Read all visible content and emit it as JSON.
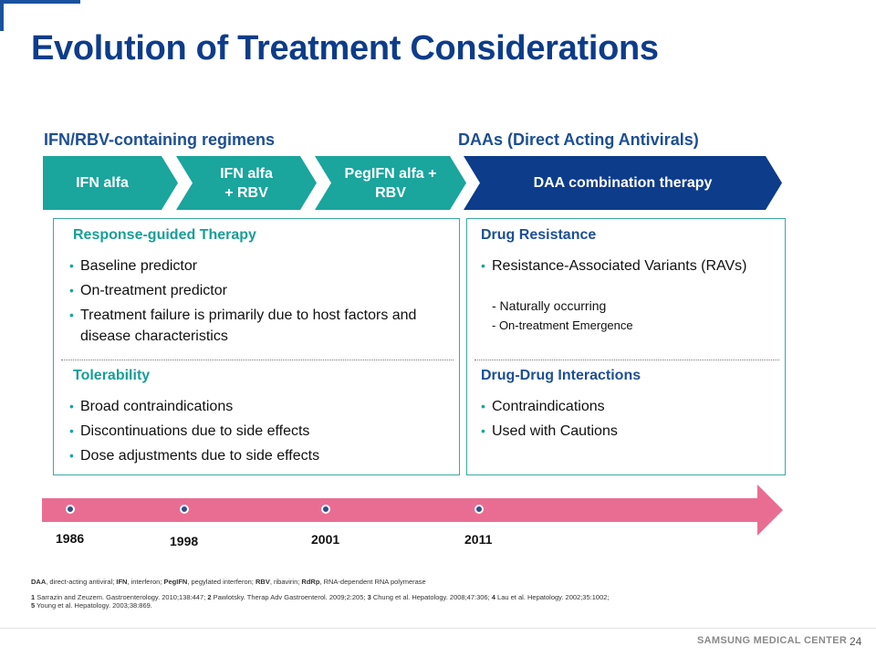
{
  "slide": {
    "title": "Evolution of Treatment Considerations",
    "page_number": "24",
    "footer_brand": "SAMSUNG MEDICAL CENTER"
  },
  "sections": {
    "left_heading": "IFN/RBV-containing  regimens",
    "right_heading": "DAAs (Direct Acting Antivirals)"
  },
  "chevrons": [
    {
      "label": "IFN alfa",
      "color": "#1aa59d"
    },
    {
      "label": "IFN alfa\n+ RBV",
      "color": "#1aa59d"
    },
    {
      "label": "PegIFN alfa +\nRBV",
      "color": "#1aa59d"
    },
    {
      "label": "DAA combination therapy",
      "color": "#0d3c8a"
    }
  ],
  "left_box": {
    "top_heading": "Response-guided Therapy",
    "top_items": [
      "Baseline predictor",
      "On-treatment predictor",
      "Treatment failure is primarily due to host  factors and disease characteristics"
    ],
    "bottom_heading": "Tolerability",
    "bottom_items": [
      "Broad contraindications",
      "Discontinuations due to side effects",
      "Dose adjustments due to side effects"
    ]
  },
  "right_box": {
    "top_heading": "Drug Resistance",
    "top_items": [
      "Resistance-Associated Variants (RAVs)"
    ],
    "top_subitems": [
      "- Naturally  occurring",
      "- On-treatment  Emergence"
    ],
    "bottom_heading": "Drug-Drug Interactions",
    "bottom_items": [
      "Contraindications",
      "Used with Cautions"
    ]
  },
  "timeline": {
    "years": [
      "1986",
      "1998",
      "2001",
      "2011"
    ],
    "bar_color": "#e96d93",
    "dot_color": "#2e4e86"
  },
  "footnotes": {
    "abbreviations": [
      {
        "term": "DAA",
        "def": ", direct-acting antiviral; "
      },
      {
        "term": "IFN",
        "def": ", interferon; "
      },
      {
        "term": "PegIFN",
        "def": ", pegylated interferon; "
      },
      {
        "term": "RBV",
        "def": ", ribavirin; "
      },
      {
        "term": "RdRp",
        "def": ", RNA-dependent RNA polymerase"
      }
    ],
    "references": [
      {
        "num": "1",
        "text": " Sarrazin and Zeuzem. Gastroenterology. 2010;138:447;  "
      },
      {
        "num": "2",
        "text": " Pawlotsky. Therap Adv Gastroenterol. 2009;2:205; "
      },
      {
        "num": "3",
        "text": " Chung et al. Hepatology. 2008;47:306; "
      },
      {
        "num": "4",
        "text": " Lau et al. Hepatology. 2002;35:1002;"
      },
      {
        "num": "5",
        "text": " Young et al. Hepatology. 2003;38:869."
      }
    ]
  },
  "colors": {
    "title": "#0d3c8a",
    "teal": "#1aa59d",
    "navy": "#0d3c8a",
    "pink": "#e96d93"
  }
}
